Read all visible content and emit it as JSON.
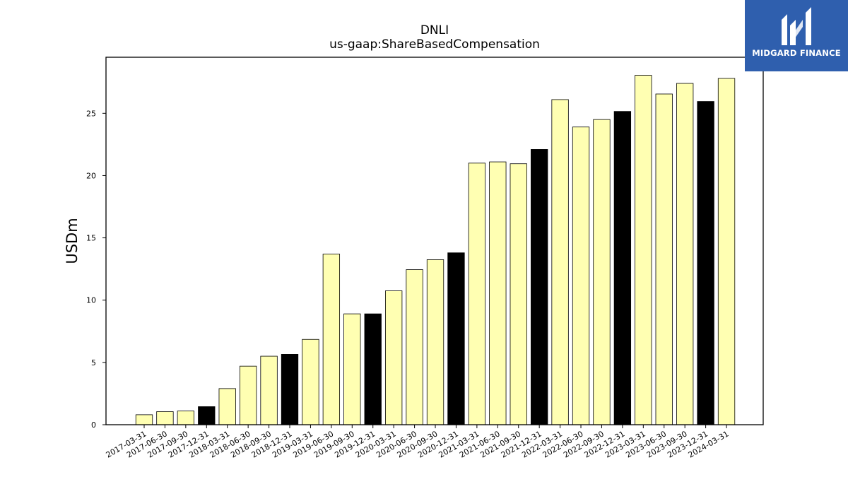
{
  "chart_data": {
    "type": "bar",
    "title": "DNLI",
    "subtitle": "us-gaap:ShareBasedCompensation",
    "xlabel": "",
    "ylabel": "USDm",
    "ylim": [
      0,
      29.5
    ],
    "yticks": [
      0,
      5,
      10,
      15,
      20,
      25
    ],
    "grid": false,
    "categories": [
      "2017-03-31",
      "2017-06-30",
      "2017-09-30",
      "2017-12-31",
      "2018-03-31",
      "2018-06-30",
      "2018-09-30",
      "2018-12-31",
      "2019-03-31",
      "2019-06-30",
      "2019-09-30",
      "2019-12-31",
      "2020-03-31",
      "2020-06-30",
      "2020-09-30",
      "2020-12-31",
      "2021-03-31",
      "2021-06-30",
      "2021-09-30",
      "2021-12-31",
      "2022-03-31",
      "2022-06-30",
      "2022-09-30",
      "2022-12-31",
      "2023-03-31",
      "2023-06-30",
      "2023-09-30",
      "2023-12-31",
      "2024-03-31"
    ],
    "values": [
      0.8,
      1.05,
      1.1,
      1.45,
      2.9,
      4.7,
      5.5,
      5.65,
      6.85,
      13.7,
      8.9,
      8.9,
      10.75,
      12.45,
      13.25,
      13.8,
      21.0,
      21.1,
      20.95,
      22.1,
      26.1,
      23.9,
      24.5,
      25.15,
      28.05,
      26.55,
      27.4,
      25.95,
      27.8
    ],
    "colors": {
      "default": "#ffffb2",
      "year_end": "#000000",
      "edge": "#000000"
    },
    "year_end_categories": [
      "2017-12-31",
      "2018-12-31",
      "2019-12-31",
      "2020-12-31",
      "2021-12-31",
      "2022-12-31",
      "2023-12-31"
    ]
  },
  "logo": {
    "text": "MIDGARD FINANCE",
    "background": "#2f5fae"
  }
}
